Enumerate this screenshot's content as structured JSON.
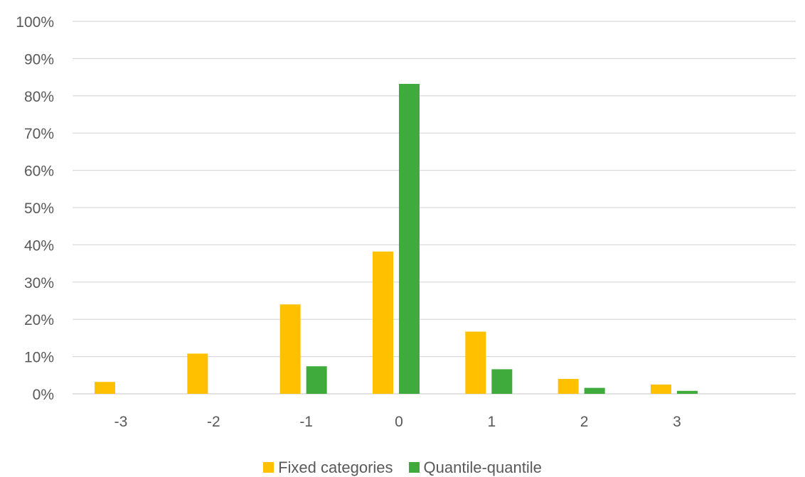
{
  "chart_data": {
    "type": "bar",
    "categories": [
      "-3",
      "-2",
      "-1",
      "0",
      "1",
      "2",
      "3"
    ],
    "series": [
      {
        "name": "Fixed categories",
        "color": "#FFC000",
        "values": [
          3.2,
          10.8,
          24.0,
          38.2,
          16.7,
          4.0,
          2.5
        ]
      },
      {
        "name": "Quantile-quantile",
        "color": "#3EAB3C",
        "values": [
          0,
          0,
          7.4,
          83.2,
          6.6,
          1.6,
          0.8
        ]
      }
    ],
    "title": "",
    "xlabel": "",
    "ylabel": "",
    "ylim": [
      0,
      100
    ],
    "yticks": [
      "0%",
      "10%",
      "20%",
      "30%",
      "40%",
      "50%",
      "60%",
      "70%",
      "80%",
      "90%",
      "100%"
    ],
    "grid": true,
    "legend_position": "bottom"
  }
}
